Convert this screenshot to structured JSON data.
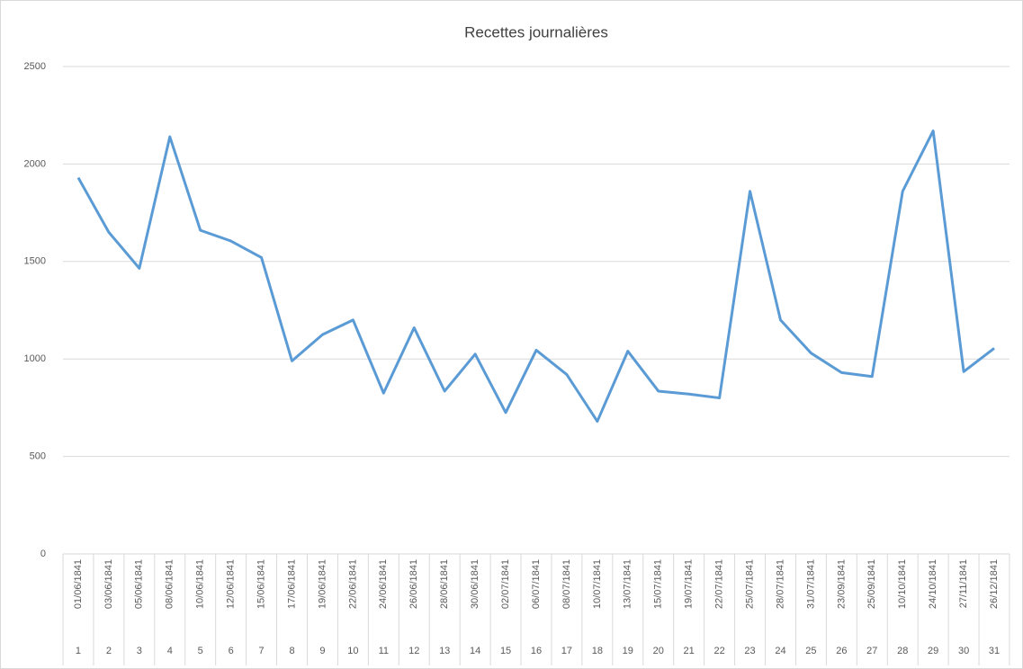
{
  "chart_data": {
    "type": "line",
    "title": "Recettes journalières",
    "categories": [
      "01/06/1841",
      "03/06/1841",
      "05/06/1841",
      "08/06/1841",
      "10/06/1841",
      "12/06/1841",
      "15/06/1841",
      "17/06/1841",
      "19/06/1841",
      "22/06/1841",
      "24/06/1841",
      "26/06/1841",
      "28/06/1841",
      "30/06/1841",
      "02/07/1841",
      "06/07/1841",
      "08/07/1841",
      "10/07/1841",
      "13/07/1841",
      "15/07/1841",
      "19/07/1841",
      "22/07/1841",
      "25/07/1841",
      "28/07/1841",
      "31/07/1841",
      "23/09/1841",
      "25/09/1841",
      "10/10/1841",
      "24/10/1841",
      "27/11/1841",
      "26/12/1841"
    ],
    "category_numbers": [
      1,
      2,
      3,
      4,
      5,
      6,
      7,
      8,
      9,
      10,
      11,
      12,
      13,
      14,
      15,
      16,
      17,
      18,
      19,
      20,
      21,
      22,
      23,
      24,
      25,
      26,
      27,
      28,
      29,
      30,
      31
    ],
    "series": [
      {
        "color": "#5b9bd5",
        "values": [
          1930,
          1650,
          1465,
          2140,
          1660,
          1605,
          1520,
          990,
          1125,
          1200,
          825,
          1160,
          835,
          1025,
          725,
          1045,
          920,
          680,
          1040,
          835,
          820,
          800,
          1860,
          1200,
          1030,
          930,
          910,
          1860,
          2170,
          935,
          1055
        ]
      }
    ],
    "ylim": [
      0,
      2500
    ],
    "yticks": [
      0,
      500,
      1000,
      1500,
      2000,
      2500
    ],
    "grid": true
  }
}
